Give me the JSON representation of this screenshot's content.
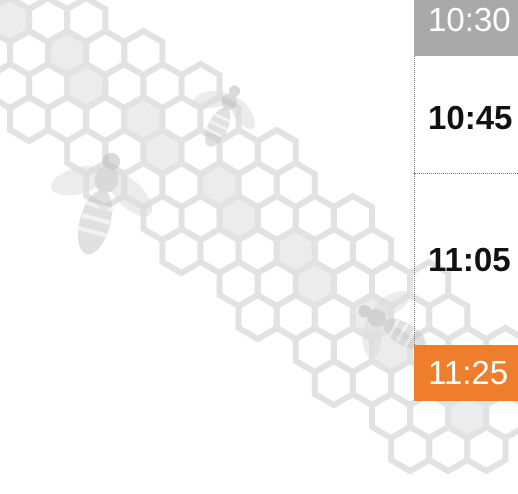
{
  "schedule": {
    "times": [
      "10:30",
      "10:45",
      "11:05",
      "11:25"
    ]
  }
}
